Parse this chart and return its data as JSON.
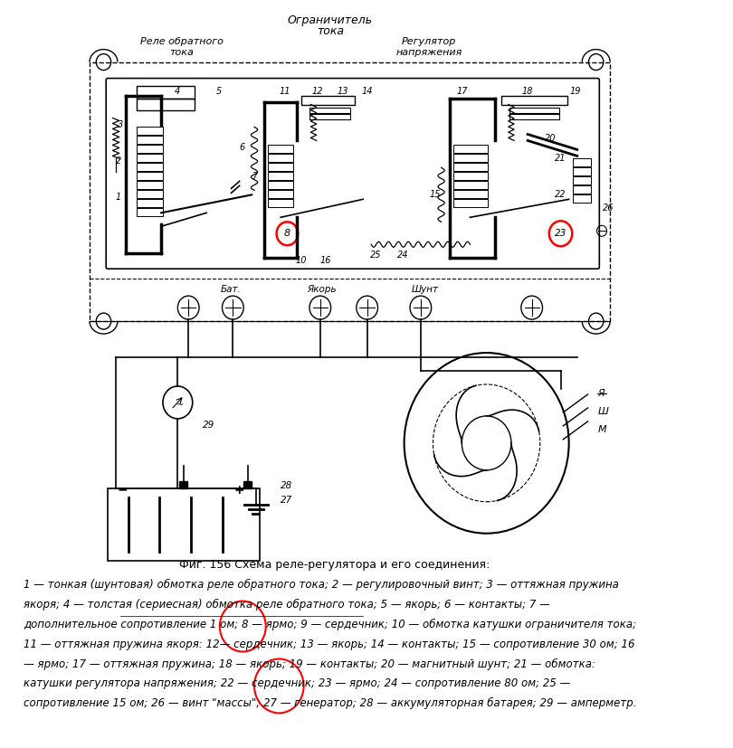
{
  "bg_color": "#ffffff",
  "fig_width": 8.1,
  "fig_height": 8.27,
  "title": "Фиг. 156 Схема реле-регулятора и его соединения:",
  "header_top": "Ограничитель",
  "header_top2": "тока",
  "header_left1": "Реле обратного",
  "header_left2": "тока",
  "header_right1": "Регулятор",
  "header_right2": "напряжения",
  "caption_lines": [
    "1 — тонкая (шунтовая) обмотка реле обратного тока; 2 — регулировочный винт; 3 — оттяжная пружина",
    "якоря; 4 — толстая (сериесная) обмотка реле обратного тока; 5 — якорь; 6 — контакты; 7 —",
    "дополнительное сопротивление 1 ом; 8 — ярмо; 9 — сердечник; 10 — обмотка катушки ограничителя тока;",
    "11 — оттяжная пружина якоря: 12— сердечник; 13 — якорь; 14 — контакты; 15 — сопротивление 30 ом; 16",
    "— ярмо; 17 — оттяжная пружина; 18 — якорь; 19 — контакты; 20 — магнитный шунт; 21 — обмотка:",
    "катушки регулятора напряжения; 22 — сердечник; 23 — ярмо; 24 — сопротивление 80 ом; 25 —",
    "сопротивление 15 ом; 26 — винт \"массы\"; 27 — генератор; 28 — аккумуляторная батарея; 29 — амперметр."
  ]
}
